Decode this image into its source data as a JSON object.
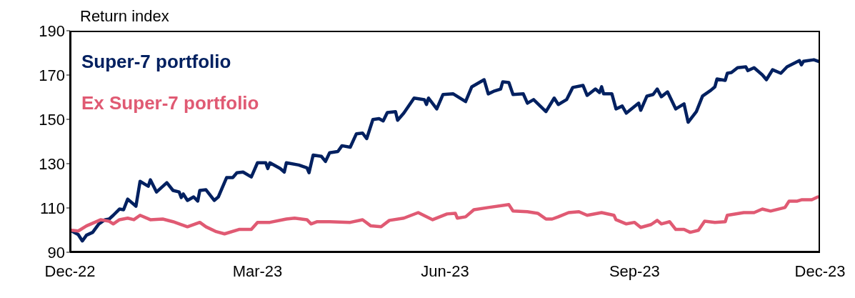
{
  "chart_data": {
    "type": "line",
    "ylabel": "Return index",
    "legend": "top left",
    "marker": "none",
    "line_style": "solid",
    "xlim": [
      "2022-12-30",
      "2023-12-29"
    ],
    "xticks": [
      {
        "value": "2022-12-30",
        "label": "Dec-22"
      },
      {
        "value": "2023-03-31",
        "label": "Mar-23"
      },
      {
        "value": "2023-06-30",
        "label": "Jun-23"
      },
      {
        "value": "2023-09-30",
        "label": "Sep-23"
      },
      {
        "value": "2023-12-29",
        "label": "Dec-23"
      }
    ],
    "ylim": [
      90,
      190
    ],
    "yticks": [
      90,
      110,
      130,
      150,
      170,
      190
    ],
    "series": [
      {
        "name": "Super-7 portfolio",
        "color": "#002060",
        "x": [
          "2022-12-30",
          "2023-01-03",
          "2023-01-05",
          "2023-01-07",
          "2023-01-10",
          "2023-01-13",
          "2023-01-16",
          "2023-01-18",
          "2023-01-20",
          "2023-01-23",
          "2023-01-25",
          "2023-01-27",
          "2023-01-31",
          "2023-02-02",
          "2023-02-06",
          "2023-02-07",
          "2023-02-10",
          "2023-02-15",
          "2023-02-18",
          "2023-02-21",
          "2023-02-22",
          "2023-02-23",
          "2023-02-25",
          "2023-02-28",
          "2023-03-02",
          "2023-03-03",
          "2023-03-06",
          "2023-03-10",
          "2023-03-12",
          "2023-03-16",
          "2023-03-19",
          "2023-03-21",
          "2023-03-24",
          "2023-03-28",
          "2023-03-31",
          "2023-04-04",
          "2023-04-05",
          "2023-04-06",
          "2023-04-11",
          "2023-04-13",
          "2023-04-14",
          "2023-04-20",
          "2023-04-24",
          "2023-04-25",
          "2023-04-27",
          "2023-05-01",
          "2023-05-03",
          "2023-05-05",
          "2023-05-09",
          "2023-05-11",
          "2023-05-15",
          "2023-05-18",
          "2023-05-21",
          "2023-05-23",
          "2023-05-26",
          "2023-05-29",
          "2023-05-31",
          "2023-06-02",
          "2023-06-06",
          "2023-06-07",
          "2023-06-10",
          "2023-06-15",
          "2023-06-20",
          "2023-06-21",
          "2023-06-22",
          "2023-06-26",
          "2023-06-29",
          "2023-07-04",
          "2023-07-10",
          "2023-07-13",
          "2023-07-16",
          "2023-07-19",
          "2023-07-21",
          "2023-07-24",
          "2023-07-27",
          "2023-07-28",
          "2023-07-31",
          "2023-08-02",
          "2023-08-07",
          "2023-08-09",
          "2023-08-12",
          "2023-08-18",
          "2023-08-22",
          "2023-08-24",
          "2023-08-28",
          "2023-08-31",
          "2023-09-05",
          "2023-09-07",
          "2023-09-11",
          "2023-09-13",
          "2023-09-14",
          "2023-09-15",
          "2023-09-19",
          "2023-09-21",
          "2023-09-24",
          "2023-09-26",
          "2023-10-02",
          "2023-10-03",
          "2023-10-06",
          "2023-10-09",
          "2023-10-11",
          "2023-10-13",
          "2023-10-16",
          "2023-10-20",
          "2023-10-24",
          "2023-10-26",
          "2023-10-30",
          "2023-11-02",
          "2023-11-06",
          "2023-11-08",
          "2023-11-09",
          "2023-11-13",
          "2023-11-14",
          "2023-11-16",
          "2023-11-19",
          "2023-11-23",
          "2023-11-24",
          "2023-11-27",
          "2023-12-01",
          "2023-12-03",
          "2023-12-06",
          "2023-12-10",
          "2023-12-13",
          "2023-12-19",
          "2023-12-20",
          "2023-12-21",
          "2023-12-26",
          "2023-12-29"
        ],
        "values": [
          100,
          98,
          95.1,
          97.7,
          99,
          102.8,
          104.7,
          105,
          106.7,
          109.5,
          109.2,
          114,
          110.8,
          122,
          119.8,
          122.7,
          117.2,
          121.4,
          117.9,
          117.2,
          114.7,
          116.3,
          113.4,
          115,
          113.1,
          117.9,
          118.2,
          113.4,
          115,
          123.7,
          123.7,
          125.9,
          126.2,
          124,
          130.4,
          130.4,
          127.8,
          130.4,
          127.8,
          126.2,
          130.4,
          129.4,
          128.1,
          125.9,
          133.9,
          133.3,
          131,
          134.9,
          135.5,
          138.1,
          137.4,
          143.5,
          143.8,
          141.3,
          149.9,
          150.3,
          149.3,
          153.1,
          153.5,
          149.6,
          152.8,
          159.6,
          158.9,
          156.7,
          159.6,
          154.7,
          161.2,
          161.5,
          158,
          164.7,
          166.3,
          167.9,
          161.5,
          162.8,
          163.7,
          166.9,
          166.6,
          161.2,
          161.5,
          157.3,
          158.9,
          153.5,
          159.6,
          156.7,
          158.9,
          164.4,
          165.3,
          160.8,
          163.7,
          162.1,
          164.7,
          161.5,
          161.5,
          154.7,
          156,
          152.8,
          157.3,
          154.1,
          160.5,
          161.2,
          163.7,
          160.2,
          162.4,
          154.7,
          157,
          148.7,
          153.5,
          160.5,
          163.1,
          164.7,
          168.2,
          167.6,
          170.8,
          171.1,
          173.3,
          173.7,
          172,
          173.3,
          170.1,
          167.9,
          172.4,
          170.8,
          173.7,
          176.5,
          174.6,
          176.2,
          176.9,
          175.9
        ]
      },
      {
        "name": "Ex Super-7 portfolio",
        "color": "#e05a73",
        "x": [
          "2022-12-30",
          "2023-01-03",
          "2023-01-07",
          "2023-01-14",
          "2023-01-18",
          "2023-01-20",
          "2023-01-23",
          "2023-01-27",
          "2023-01-30",
          "2023-02-02",
          "2023-02-07",
          "2023-02-13",
          "2023-02-18",
          "2023-02-25",
          "2023-03-03",
          "2023-03-06",
          "2023-03-11",
          "2023-03-15",
          "2023-03-22",
          "2023-03-28",
          "2023-03-31",
          "2023-04-06",
          "2023-04-14",
          "2023-04-18",
          "2023-04-24",
          "2023-04-26",
          "2023-04-29",
          "2023-05-05",
          "2023-05-15",
          "2023-05-21",
          "2023-05-25",
          "2023-05-30",
          "2023-06-03",
          "2023-06-10",
          "2023-06-17",
          "2023-06-24",
          "2023-07-01",
          "2023-07-05",
          "2023-07-06",
          "2023-07-10",
          "2023-07-14",
          "2023-07-21",
          "2023-07-31",
          "2023-08-02",
          "2023-08-09",
          "2023-08-14",
          "2023-08-18",
          "2023-08-21",
          "2023-08-24",
          "2023-08-29",
          "2023-09-03",
          "2023-09-07",
          "2023-09-14",
          "2023-09-20",
          "2023-09-21",
          "2023-09-26",
          "2023-09-30",
          "2023-10-03",
          "2023-10-08",
          "2023-10-11",
          "2023-10-13",
          "2023-10-17",
          "2023-10-20",
          "2023-10-24",
          "2023-10-27",
          "2023-10-31",
          "2023-11-03",
          "2023-11-08",
          "2023-11-13",
          "2023-11-14",
          "2023-11-22",
          "2023-11-27",
          "2023-12-01",
          "2023-12-05",
          "2023-12-12",
          "2023-12-14",
          "2023-12-18",
          "2023-12-20",
          "2023-12-25",
          "2023-12-28"
        ],
        "values": [
          100,
          99.6,
          101.9,
          104.7,
          104,
          102.8,
          104.7,
          105.4,
          104.7,
          106.7,
          104.7,
          105,
          103.8,
          101.5,
          103.5,
          101.5,
          99.3,
          98.3,
          100.3,
          100.3,
          103.5,
          103.5,
          105,
          105.4,
          104.7,
          102.8,
          103.8,
          103.8,
          103.5,
          104.7,
          101.9,
          101.5,
          104.4,
          105.4,
          107.9,
          104.7,
          107.3,
          107.6,
          105.4,
          106,
          109.2,
          110.2,
          111.5,
          108.6,
          108.3,
          107.6,
          105,
          105,
          106,
          107.9,
          108.3,
          106.7,
          107.9,
          106.7,
          104.7,
          102.8,
          103.5,
          101.2,
          102.5,
          104.4,
          102.8,
          103.8,
          100.3,
          100.3,
          99,
          99.9,
          104,
          103.5,
          103.8,
          106.7,
          107.9,
          107.9,
          109.5,
          108.6,
          110.2,
          113.1,
          113.1,
          113.7,
          113.7,
          115
        ]
      }
    ]
  }
}
